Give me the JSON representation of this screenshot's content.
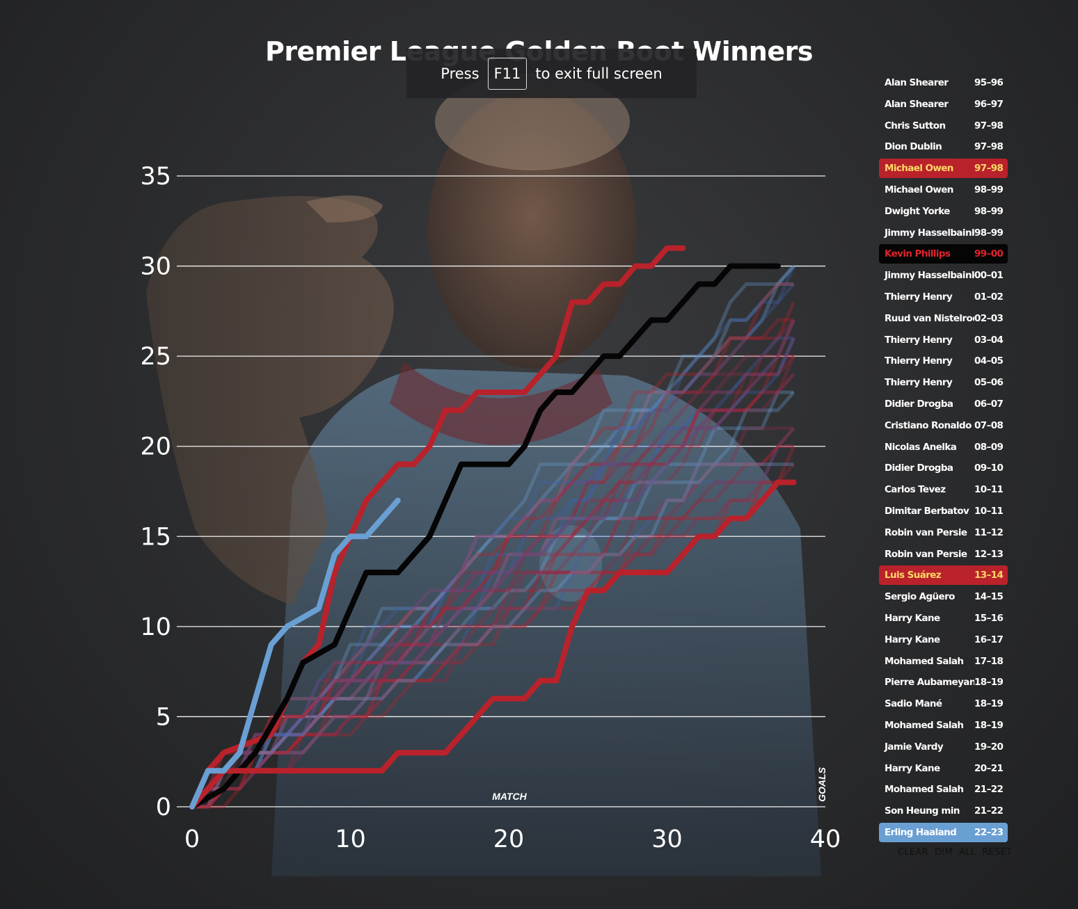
{
  "chart_data": {
    "type": "line",
    "title": "Premier League Golden Boot Winners",
    "xlabel": "MATCH",
    "ylabel": "GOALS",
    "xlim": [
      0,
      40
    ],
    "ylim": [
      0,
      35
    ],
    "xticks": [
      0,
      10,
      20,
      30,
      40
    ],
    "yticks": [
      0,
      5,
      10,
      15,
      20,
      25,
      30,
      35
    ],
    "grid": "horizontal",
    "legend_position": "right",
    "highlighted_series": [
      {
        "name": "Michael Owen 97–98",
        "color": "#b9222b",
        "steps": [
          [
            0,
            0
          ],
          [
            1,
            2
          ],
          [
            2,
            3
          ],
          [
            5,
            4
          ],
          [
            6,
            6
          ],
          [
            7,
            8
          ],
          [
            8,
            9
          ],
          [
            9,
            13
          ],
          [
            10,
            15
          ],
          [
            11,
            17
          ],
          [
            12,
            18
          ],
          [
            13,
            19
          ],
          [
            14,
            19
          ],
          [
            15,
            20
          ],
          [
            16,
            22
          ],
          [
            17,
            22
          ],
          [
            18,
            23
          ],
          [
            19,
            23
          ],
          [
            20,
            23
          ],
          [
            21,
            23
          ],
          [
            22,
            24
          ],
          [
            23,
            25
          ],
          [
            24,
            28
          ],
          [
            25,
            28
          ],
          [
            26,
            29
          ],
          [
            27,
            29
          ],
          [
            28,
            30
          ],
          [
            29,
            30
          ],
          [
            30,
            31
          ],
          [
            31,
            31
          ]
        ]
      },
      {
        "name": "Kevin Phillips 99–00",
        "color": "#050505",
        "steps": [
          [
            0,
            0
          ],
          [
            2,
            1
          ],
          [
            4,
            3
          ],
          [
            6,
            6
          ],
          [
            7,
            8
          ],
          [
            9,
            9
          ],
          [
            10,
            11
          ],
          [
            11,
            13
          ],
          [
            13,
            13
          ],
          [
            15,
            15
          ],
          [
            16,
            17
          ],
          [
            17,
            19
          ],
          [
            20,
            19
          ],
          [
            21,
            20
          ],
          [
            22,
            22
          ],
          [
            23,
            23
          ],
          [
            24,
            23
          ],
          [
            25,
            24
          ],
          [
            26,
            25
          ],
          [
            27,
            25
          ],
          [
            28,
            26
          ],
          [
            29,
            27
          ],
          [
            30,
            27
          ],
          [
            31,
            28
          ],
          [
            32,
            29
          ],
          [
            33,
            29
          ],
          [
            34,
            30
          ],
          [
            36,
            30
          ],
          [
            37,
            30
          ]
        ]
      },
      {
        "name": "Luis Suárez 13–14",
        "color": "#b9222b",
        "steps": [
          [
            0,
            0
          ],
          [
            1,
            1
          ],
          [
            2,
            2
          ],
          [
            12,
            2
          ],
          [
            13,
            3
          ],
          [
            16,
            3
          ],
          [
            17,
            4
          ],
          [
            18,
            5
          ],
          [
            19,
            6
          ],
          [
            21,
            6
          ],
          [
            22,
            7
          ],
          [
            23,
            7
          ],
          [
            24,
            10
          ],
          [
            25,
            12
          ],
          [
            26,
            12
          ],
          [
            27,
            13
          ],
          [
            30,
            13
          ],
          [
            31,
            14
          ],
          [
            32,
            15
          ],
          [
            33,
            15
          ],
          [
            34,
            16
          ],
          [
            35,
            16
          ],
          [
            36,
            17
          ],
          [
            37,
            18
          ],
          [
            38,
            18
          ]
        ]
      },
      {
        "name": "Erling Haaland 22–23",
        "color": "#6a9fd3",
        "steps": [
          [
            0,
            0
          ],
          [
            1,
            2
          ],
          [
            2,
            2
          ],
          [
            3,
            3
          ],
          [
            4,
            6
          ],
          [
            5,
            9
          ],
          [
            6,
            10
          ],
          [
            7,
            10.5
          ],
          [
            8,
            11
          ],
          [
            9,
            14
          ],
          [
            10,
            15
          ],
          [
            11,
            15
          ],
          [
            12,
            16
          ],
          [
            13,
            17
          ]
        ]
      }
    ]
  },
  "overlay": {
    "press": "Press",
    "key": "F11",
    "suffix": "to exit full screen"
  },
  "legend": [
    {
      "name": "Alan Shearer",
      "season": "95–96",
      "hl": ""
    },
    {
      "name": "Alan Shearer",
      "season": "96–97",
      "hl": ""
    },
    {
      "name": "Chris Sutton",
      "season": "97–98",
      "hl": ""
    },
    {
      "name": "Dion Dublin",
      "season": "97–98",
      "hl": ""
    },
    {
      "name": "Michael Owen",
      "season": "97–98",
      "hl": "red"
    },
    {
      "name": "Michael Owen",
      "season": "98–99",
      "hl": ""
    },
    {
      "name": "Dwight Yorke",
      "season": "98–99",
      "hl": ""
    },
    {
      "name": "Jimmy Hasselbaink",
      "season": "98–99",
      "hl": ""
    },
    {
      "name": "Kevin Phillips",
      "season": "99–00",
      "hl": "black"
    },
    {
      "name": "Jimmy Hasselbaink",
      "season": "00–01",
      "hl": ""
    },
    {
      "name": "Thierry Henry",
      "season": "01–02",
      "hl": ""
    },
    {
      "name": "Ruud van Nistelrooy",
      "season": "02–03",
      "hl": ""
    },
    {
      "name": "Thierry Henry",
      "season": "03–04",
      "hl": ""
    },
    {
      "name": "Thierry Henry",
      "season": "04–05",
      "hl": ""
    },
    {
      "name": "Thierry Henry",
      "season": "05–06",
      "hl": ""
    },
    {
      "name": "Didier Drogba",
      "season": "06–07",
      "hl": ""
    },
    {
      "name": "Cristiano Ronaldo",
      "season": "07–08",
      "hl": ""
    },
    {
      "name": "Nicolas Anelka",
      "season": "08–09",
      "hl": ""
    },
    {
      "name": "Didier Drogba",
      "season": "09–10",
      "hl": ""
    },
    {
      "name": "Carlos Tevez",
      "season": "10–11",
      "hl": ""
    },
    {
      "name": "Dimitar Berbatov",
      "season": "10–11",
      "hl": ""
    },
    {
      "name": "Robin van Persie",
      "season": "11–12",
      "hl": ""
    },
    {
      "name": "Robin van Persie",
      "season": "12–13",
      "hl": ""
    },
    {
      "name": "Luis Suárez",
      "season": "13–14",
      "hl": "red"
    },
    {
      "name": "Sergio Agüero",
      "season": "14–15",
      "hl": ""
    },
    {
      "name": "Harry Kane",
      "season": "15–16",
      "hl": ""
    },
    {
      "name": "Harry Kane",
      "season": "16–17",
      "hl": ""
    },
    {
      "name": "Mohamed Salah",
      "season": "17–18",
      "hl": ""
    },
    {
      "name": "Pierre Aubameyang",
      "season": "18–19",
      "hl": ""
    },
    {
      "name": "Sadio Mané",
      "season": "18–19",
      "hl": ""
    },
    {
      "name": "Mohamed Salah",
      "season": "18–19",
      "hl": ""
    },
    {
      "name": "Jamie Vardy",
      "season": "19–20",
      "hl": ""
    },
    {
      "name": "Harry Kane",
      "season": "20–21",
      "hl": ""
    },
    {
      "name": "Mohamed Salah",
      "season": "21–22",
      "hl": ""
    },
    {
      "name": "Son Heung min",
      "season": "21–22",
      "hl": ""
    },
    {
      "name": "Erling Haaland",
      "season": "22–23",
      "hl": "blue"
    }
  ],
  "controls": {
    "clear": "CLEAR",
    "dim": "DIM",
    "all": "ALL",
    "reset": "RESET"
  },
  "colors": {
    "accent_red": "#b9222b",
    "accent_blue": "#6a9fd3",
    "black": "#050505",
    "highlight_text": "#ffd866"
  }
}
